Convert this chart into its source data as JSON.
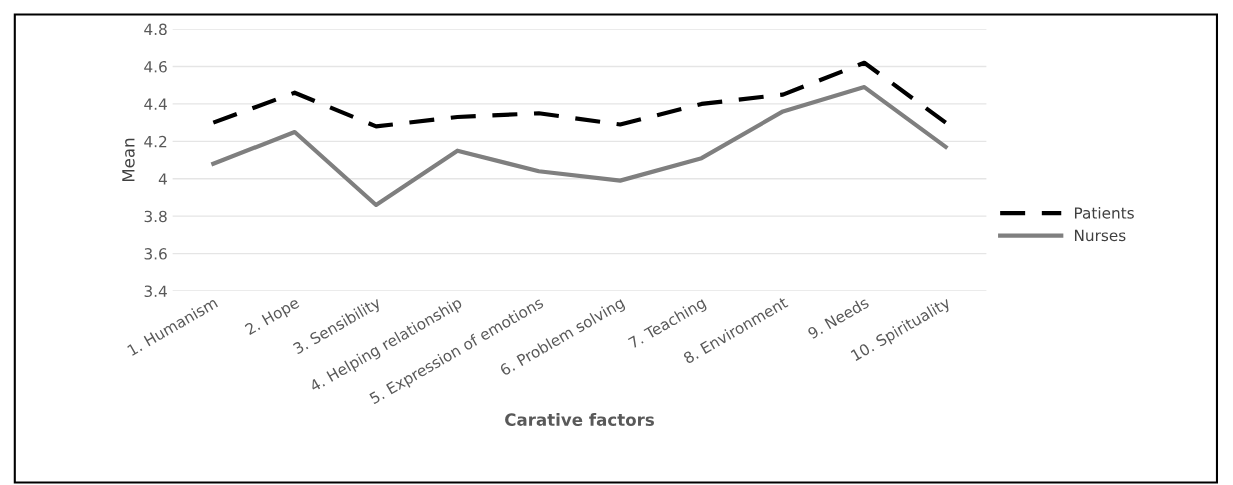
{
  "chart_data": {
    "type": "line",
    "xlabel": "Carative factors",
    "ylabel": "Mean",
    "categories": [
      "1. Humanism",
      "2. Hope",
      "3. Sensibility",
      "4. Helping relationship",
      "5. Expression of emotions",
      "6. Problem solving",
      "7. Teaching",
      "8. Environment",
      "9. Needs",
      "10. Spirituality"
    ],
    "series": [
      {
        "name": "Patients",
        "color": "#000000",
        "line_style": "dashed",
        "values": [
          4.3,
          4.46,
          4.28,
          4.33,
          4.35,
          4.29,
          4.4,
          4.45,
          4.62,
          4.3
        ]
      },
      {
        "name": "Nurses",
        "color": "#7f7f7f",
        "line_style": "solid",
        "values": [
          4.08,
          4.25,
          3.86,
          4.15,
          4.04,
          3.99,
          4.11,
          4.36,
          4.49,
          4.17
        ]
      }
    ],
    "ylim": [
      3.4,
      4.8
    ],
    "yticks": [
      3.4,
      3.6,
      3.8,
      4,
      4.2,
      4.4,
      4.6,
      4.8
    ],
    "grid": "y",
    "legend": "right",
    "marker": "none"
  }
}
